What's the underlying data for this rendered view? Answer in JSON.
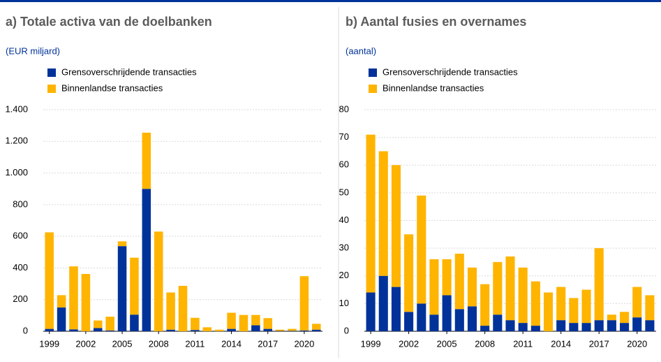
{
  "chart_data": [
    {
      "type": "stacked-bar",
      "title": "a) Totale activa van de doelbanken",
      "subtitle": "(EUR miljard)",
      "categories": [
        "1999",
        null,
        null,
        "2002",
        null,
        null,
        "2005",
        null,
        null,
        "2008",
        null,
        null,
        "2011",
        null,
        null,
        "2014",
        null,
        null,
        "2017",
        null,
        null,
        "2020",
        null
      ],
      "series": [
        {
          "name": "Grensoverschrijdende transacties",
          "color": "#003299",
          "values": [
            15,
            150,
            12,
            0,
            20,
            5,
            538,
            105,
            900,
            0,
            10,
            0,
            8,
            0,
            0,
            15,
            0,
            38,
            15,
            2,
            3,
            5,
            10
          ]
        },
        {
          "name": "Binnenlandse transacties",
          "color": "#ffb400",
          "values": [
            610,
            78,
            398,
            362,
            48,
            87,
            30,
            360,
            355,
            630,
            235,
            287,
            77,
            25,
            10,
            102,
            103,
            65,
            68,
            8,
            12,
            343,
            37
          ]
        }
      ],
      "ylim": [
        0,
        1400
      ],
      "yticks": [
        0,
        200,
        400,
        600,
        800,
        {
          "value": 1000,
          "label": "1.000"
        },
        {
          "value": 1200,
          "label": "1.200"
        },
        {
          "value": 1400,
          "label": "1.400"
        }
      ],
      "grid": true
    },
    {
      "type": "stacked-bar",
      "title": "b) Aantal fusies en overnames",
      "subtitle": "(aantal)",
      "categories": [
        "1999",
        null,
        null,
        "2002",
        null,
        null,
        "2005",
        null,
        null,
        "2008",
        null,
        null,
        "2011",
        null,
        null,
        "2014",
        null,
        null,
        "2017",
        null,
        null,
        "2020",
        null
      ],
      "series": [
        {
          "name": "Grensoverschrijdende transacties",
          "color": "#003299",
          "values": [
            14,
            20,
            16,
            7,
            10,
            6,
            13,
            8,
            9,
            2,
            6,
            4,
            3,
            2,
            0,
            4,
            3,
            3,
            4,
            4,
            3,
            5,
            4
          ]
        },
        {
          "name": "Binnenlandse transacties",
          "color": "#ffb400",
          "values": [
            57,
            45,
            44,
            28,
            39,
            20,
            13,
            20,
            14,
            15,
            19,
            23,
            20,
            16,
            14,
            12,
            9,
            12,
            26,
            2,
            4,
            11,
            9
          ]
        }
      ],
      "ylim": [
        0,
        80
      ],
      "yticks": [
        0,
        10,
        20,
        30,
        40,
        50,
        60,
        70,
        80
      ],
      "grid": true
    }
  ]
}
